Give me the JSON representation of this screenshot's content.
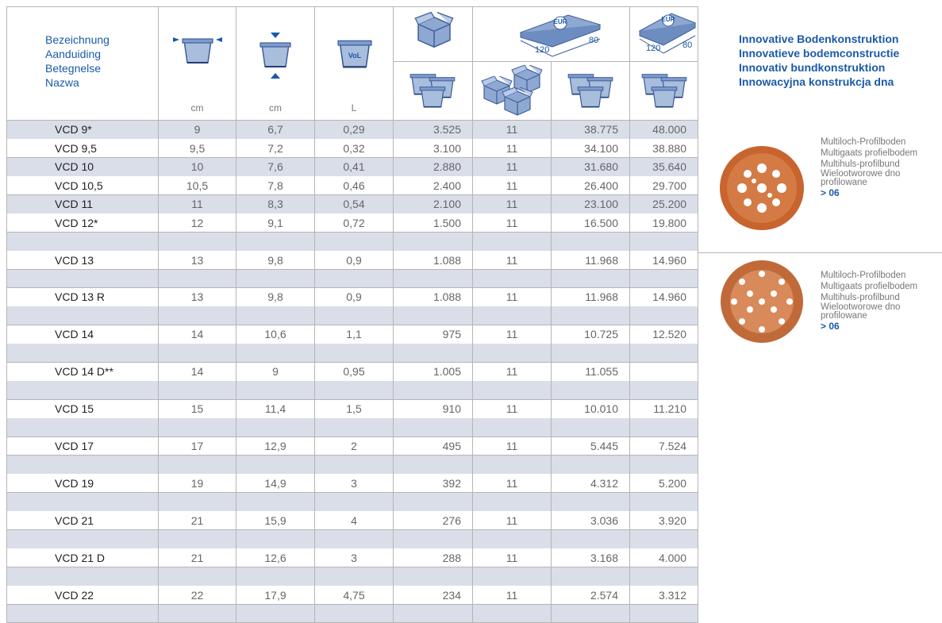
{
  "header": {
    "name_labels": [
      "Bezeichnung",
      "Aanduiding",
      "Betegnelse",
      "Nazwa"
    ],
    "units": [
      "cm",
      "cm",
      "L"
    ],
    "volume_icon_label": "VoL",
    "pallet_icons": [
      {
        "brand": "EUR",
        "length": "120",
        "width": "80"
      },
      {
        "brand": "EUR",
        "length": "120",
        "width": "80"
      }
    ]
  },
  "feature": {
    "title_lines": [
      "Innovative Bodenkonstruktion",
      "Innovatieve bodemconstructie",
      "Innovativ bundkonstruktion",
      "Innowacyjna konstrukcja dna"
    ],
    "sections": [
      {
        "lines": [
          "Multiloch-Profilboden",
          "Multigaats profielbodem",
          "Multihuls-profilbund",
          "Wielootworowe dno profilowane"
        ],
        "link": "> 06"
      },
      {
        "lines": [
          "Multiloch-Profilboden",
          "Multigaats profielbodem",
          "Multihuls-profilbund",
          "Wielootworowe dno profilowane"
        ],
        "link": "> 06"
      }
    ]
  },
  "table": {
    "rows": [
      [
        "VCD 9*",
        "9",
        "6,7",
        "0,29",
        "3.525",
        "11",
        "38.775",
        "48.000"
      ],
      [
        "VCD 9,5",
        "9,5",
        "7,2",
        "0,32",
        "3.100",
        "11",
        "34.100",
        "38.880"
      ],
      [
        "VCD 10",
        "10",
        "7,6",
        "0,41",
        "2.880",
        "11",
        "31.680",
        "35.640"
      ],
      [
        "VCD 10,5",
        "10,5",
        "7,8",
        "0,46",
        "2.400",
        "11",
        "26.400",
        "29.700"
      ],
      [
        "VCD 11",
        "11",
        "8,3",
        "0,54",
        "2.100",
        "11",
        "23.100",
        "25.200"
      ],
      [
        "VCD 12*",
        "12",
        "9,1",
        "0,72",
        "1.500",
        "11",
        "16.500",
        "19.800"
      ],
      [],
      [
        "VCD 13",
        "13",
        "9,8",
        "0,9",
        "1.088",
        "11",
        "11.968",
        "14.960"
      ],
      [],
      [
        "VCD 13 R",
        "13",
        "9,8",
        "0,9",
        "1.088",
        "11",
        "11.968",
        "14.960"
      ],
      [],
      [
        "VCD 14",
        "14",
        "10,6",
        "1,1",
        "975",
        "11",
        "10.725",
        "12.520"
      ],
      [],
      [
        "VCD 14 D**",
        "14",
        "9",
        "0,95",
        "1.005",
        "11",
        "11.055"
      ],
      [],
      [
        "VCD 15",
        "15",
        "11,4",
        "1,5",
        "910",
        "11",
        "10.010",
        "11.210"
      ],
      [],
      [
        "VCD 17",
        "17",
        "12,9",
        "2",
        "495",
        "11",
        "5.445",
        "7.524"
      ],
      [],
      [
        "VCD 19",
        "19",
        "14,9",
        "3",
        "392",
        "11",
        "4.312",
        "5.200"
      ],
      [],
      [
        "VCD 21",
        "21",
        "15,9",
        "4",
        "276",
        "11",
        "3.036",
        "3.920"
      ],
      [],
      [
        "VCD 21 D",
        "21",
        "12,6",
        "3",
        "288",
        "11",
        "3.168",
        "4.000"
      ],
      [],
      [
        "VCD 22",
        "22",
        "17,9",
        "4,75",
        "234",
        "11",
        "2.574",
        "3.312"
      ],
      []
    ]
  }
}
